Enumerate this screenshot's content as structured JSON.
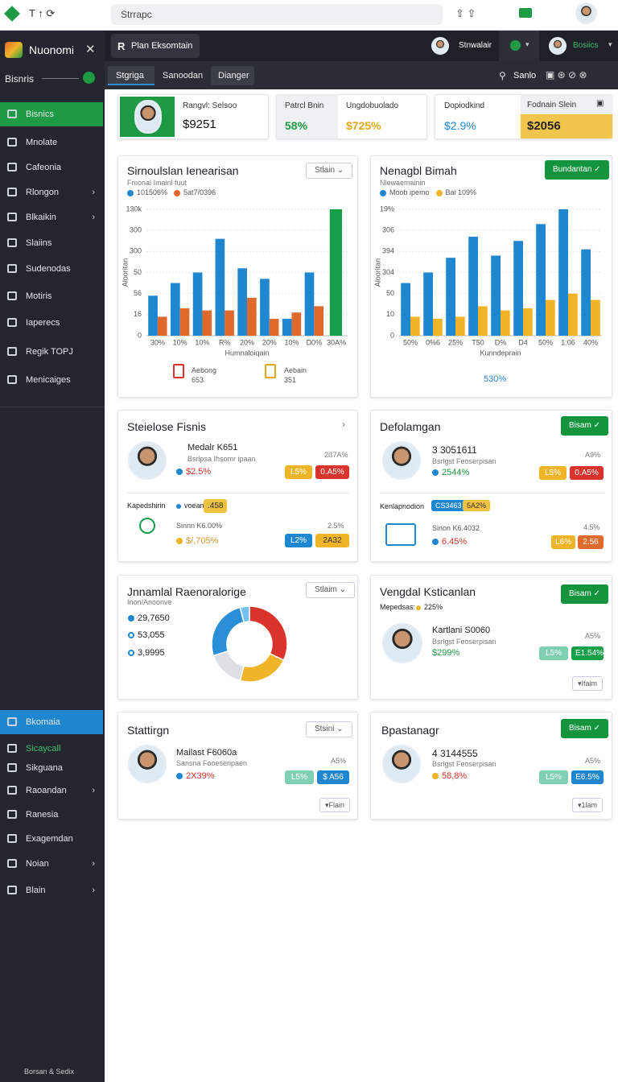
{
  "browser": {
    "url": "Strrapc"
  },
  "sidebar": {
    "brand": "Nuonomi",
    "workspace": "Bisnris",
    "menu": [
      "Bisnics",
      "Mnolate",
      "Cafeonia",
      "Rlongon",
      "Blkaikin",
      "Slaiins",
      "Sudenodas",
      "Motiris",
      "Iaperecs",
      "Regik TOPJ",
      "Menicaiges"
    ],
    "menu2": [
      "Bkomaia",
      "Sicaycall",
      "Sikguana",
      "Raoandan",
      "Ranesia",
      "Exagemdan",
      "Noian",
      "Blain"
    ],
    "footer": "Borsan & Sedix"
  },
  "header": {
    "tab": "Plan Eksomtain",
    "user1": "Stnwalair",
    "user2": "Bosiics"
  },
  "tabs": [
    "Stgriga",
    "Sanoodan",
    "Dianger"
  ],
  "toolbar_label": "Sanlo",
  "kpis": [
    {
      "label": "Rangvl: Selsoo",
      "value": "$9251"
    },
    {
      "label": "Patrcl Bnin",
      "value": "58%"
    },
    {
      "label": "Ungdobuolado",
      "value": "$725%"
    },
    {
      "label": "Dopiodkind",
      "value": "$2.9%"
    },
    {
      "label": "Fodnain Slein",
      "value": "$2056"
    }
  ],
  "sales_chart": {
    "type": "bar",
    "title": "Sirnoulslan Ienearisan",
    "subtitle": "Fmonal Imainl fuut",
    "dropdown": "Stlain",
    "categories": [
      "30%",
      "10%",
      "10%",
      "R%",
      "20%",
      "20%",
      "10%",
      "D0%",
      "30A%"
    ],
    "series": [
      {
        "name": "101506%",
        "color": "#1f87d0",
        "values": [
          1.9,
          2.5,
          3.0,
          4.6,
          3.2,
          2.7,
          0.8,
          3.0,
          null
        ]
      },
      {
        "name": "5at7/0396",
        "color": "#e0692c",
        "values": [
          0.9,
          1.3,
          1.2,
          1.2,
          1.8,
          0.8,
          1.1,
          1.4,
          null
        ]
      },
      {
        "color": "#16a04a",
        "values": [
          null,
          null,
          null,
          null,
          null,
          null,
          null,
          null,
          6.0
        ]
      }
    ],
    "ylim": [
      0,
      6
    ],
    "yticks": [
      {
        "value": 0,
        "label": "0"
      },
      {
        "value": 1,
        "label": "16"
      },
      {
        "value": 2,
        "label": "56"
      },
      {
        "value": 3,
        "label": "50"
      },
      {
        "value": 4,
        "label": "300"
      },
      {
        "value": 5,
        "label": "300"
      },
      {
        "value": 6,
        "label": "130k"
      }
    ],
    "grid": true,
    "x_label": "Humnaloiqain",
    "y_label": "Alooritan",
    "footer": [
      {
        "label": "Aebong",
        "value": "653"
      },
      {
        "label": "Aebain",
        "value": "351"
      }
    ]
  },
  "growth_chart": {
    "type": "bar",
    "title": "Nenagbl Bimah",
    "subtitle": "Nlewaemainin",
    "button": "Bundantan",
    "categories": [
      "50%",
      "0%6",
      "25%",
      "T50",
      "D%",
      "D4",
      "50%",
      "1:06",
      "40%"
    ],
    "series": [
      {
        "name": "Moob ipemo",
        "color": "#1f87d0",
        "values": [
          2.5,
          3.0,
          3.7,
          4.7,
          3.8,
          4.5,
          5.3,
          6.0,
          4.1
        ]
      },
      {
        "name": "Bai 109%",
        "color": "#f0b429",
        "values": [
          0.9,
          0.8,
          0.9,
          1.4,
          1.2,
          1.3,
          1.7,
          2.0,
          1.7
        ]
      }
    ],
    "ylim": [
      0,
      6
    ],
    "yticks": [
      {
        "value": 0,
        "label": "0"
      },
      {
        "value": 1,
        "label": "10"
      },
      {
        "value": 2,
        "label": "50"
      },
      {
        "value": 3,
        "label": "304"
      },
      {
        "value": 4,
        "label": "394"
      },
      {
        "value": 5,
        "label": "306"
      },
      {
        "value": 6,
        "label": "19%"
      }
    ],
    "grid": true,
    "x_label": "Kunndeprain",
    "y_label": "Alooritan",
    "footer": "530%"
  },
  "people_panel": {
    "title": "Steielose Fisnis",
    "person": {
      "name": "Medalr K651",
      "sub": "Bsrlpsa Ihsomr ipaan",
      "stat": "$2.5%",
      "change": "2ß7A%",
      "badges": [
        "L5%",
        "0.A5%"
      ]
    },
    "section": "Kapedshirin",
    "section_tag": "voean",
    "section_badge": ".458",
    "item": {
      "name": "Sinnn K6.00%",
      "stat": "$/,705%",
      "change": "2.5%",
      "badges": [
        "L2%",
        "2A32"
      ]
    }
  },
  "dev_panel": {
    "title": "Defolamgan",
    "button": "Bisam",
    "person": {
      "name": "3 3051611",
      "sub": "Bsrlgst Feoserpisan",
      "stat": "2544%",
      "change": "A9%",
      "badges": [
        "L5%",
        "0.A5%"
      ]
    },
    "section": "Kenlapnodion",
    "section_tags": [
      "CS3463",
      "5A2%"
    ],
    "item": {
      "name": "Sinon K6.4032",
      "stat": "6.45%",
      "change": "4.5%",
      "badges": [
        "L6%",
        "2.56"
      ]
    }
  },
  "revenue_panel": {
    "title": "Jnnamlal Raenoralorige",
    "subtitle": "Inon/Anoonve",
    "dropdown": "Stlaim",
    "items": [
      "29,7650",
      "53,055",
      "3,9995"
    ],
    "donut": {
      "values": [
        32,
        22,
        16,
        26,
        4
      ],
      "colors": [
        "#d9332b",
        "#f0b429",
        "#dde1e6",
        "#2b8fd8",
        "#74c0ee"
      ]
    }
  },
  "vendor_panel": {
    "title": "Vengdal Ksticanlan",
    "button": "Bisam",
    "meta": "Mepedsas:",
    "meta_value": "225%",
    "person": {
      "name": "Kartlani S0060",
      "sub": "Bsrlgst Feoserpisan",
      "stat": "$299%",
      "change": "A5%",
      "badges": [
        "L5%",
        "E1.54%"
      ]
    },
    "more": "▾Ifaim"
  },
  "status_panel": {
    "title": "Stattirgn",
    "dropdown": "Stsini",
    "person": {
      "name": "Mailast F6060a",
      "sub": "Sansna Fooeseripaen",
      "stat": "2X39%",
      "change": "A5%",
      "badges": [
        "L5%",
        "$ A56"
      ]
    },
    "more": "▾Flain"
  },
  "plan_panel": {
    "title": "Bpastanagr",
    "button": "Bisam",
    "person": {
      "name": "4 3144555",
      "sub": "Bsrlgst Feoserpisan",
      "stat": "58,8%",
      "change": "A5%",
      "badges": [
        "L5%",
        "E6.5%"
      ]
    },
    "more": "▾1lam"
  }
}
